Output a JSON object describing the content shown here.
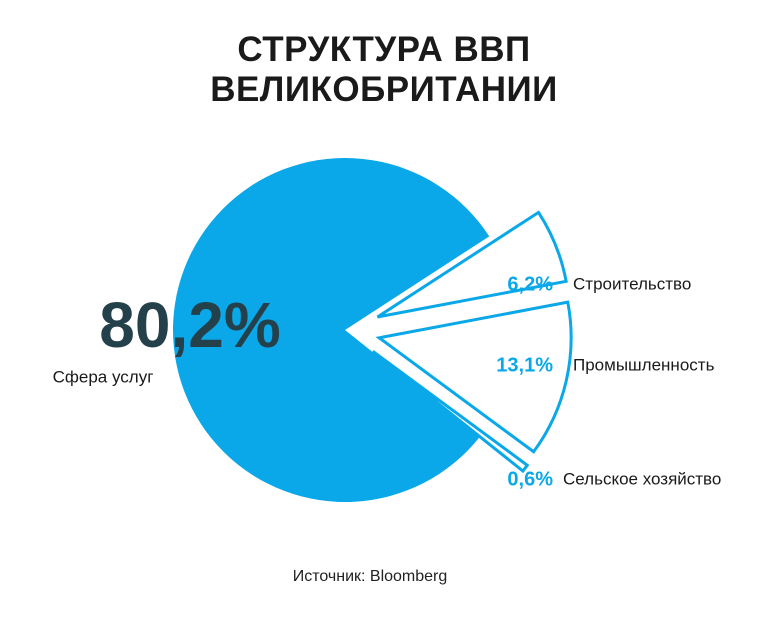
{
  "chart_data": {
    "type": "pie",
    "title": "СТРУКТУРА ВВП ВЕЛИКОБРИТАНИИ",
    "categories": [
      "Строительство",
      "Промышленность",
      "Сельское хозяйство",
      "Сфера услуг"
    ],
    "values": [
      6.2,
      13.1,
      0.6,
      80.2
    ],
    "value_labels": [
      "6,2%",
      "13,1%",
      "0,6%",
      "80,2%"
    ],
    "colors": [
      "#ffffff",
      "#ffffff",
      "#ffffff",
      "#0aa8e8"
    ],
    "edge_color": "#0aa8e8",
    "source": "Источник: Bloomberg"
  }
}
